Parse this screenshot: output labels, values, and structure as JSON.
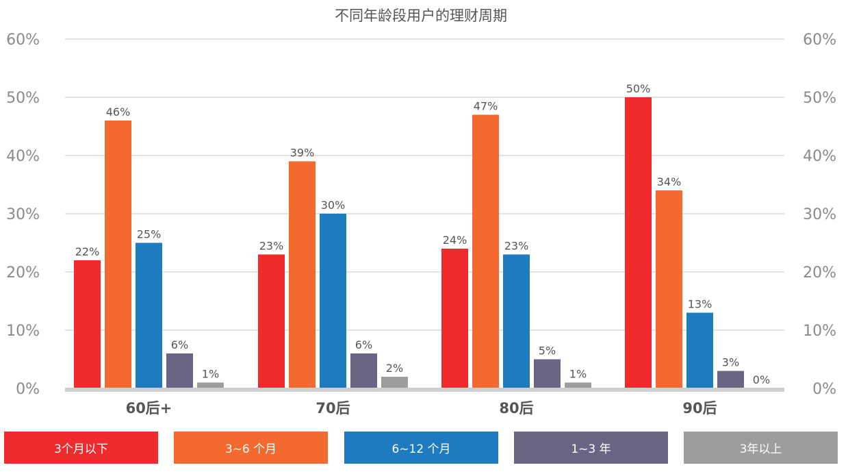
{
  "chart_data": {
    "type": "bar",
    "title": "不同年龄段用户的理财周期",
    "categories": [
      "60后+",
      "70后",
      "80后",
      "90后"
    ],
    "series": [
      {
        "name": "3个月以下",
        "color": "#ef2b2d",
        "values": [
          22,
          23,
          24,
          50
        ]
      },
      {
        "name": "3~6 个月",
        "color": "#f26a30",
        "values": [
          46,
          39,
          47,
          34
        ]
      },
      {
        "name": "6~12 个月",
        "color": "#1f7bbf",
        "values": [
          25,
          30,
          23,
          13
        ]
      },
      {
        "name": "1~3 年",
        "color": "#6b6585",
        "values": [
          6,
          6,
          5,
          3
        ]
      },
      {
        "name": "3年以上",
        "color": "#9d9d9f",
        "values": [
          1,
          2,
          1,
          0
        ]
      }
    ],
    "data_labels": [
      [
        "22%",
        "46%",
        "25%",
        "6%",
        "1%"
      ],
      [
        "23%",
        "39%",
        "30%",
        "6%",
        "2%"
      ],
      [
        "24%",
        "47%",
        "23%",
        "5%",
        "1%"
      ],
      [
        "50%",
        "34%",
        "13%",
        "3%",
        "0%"
      ]
    ],
    "ylim": [
      0,
      60
    ],
    "y_ticks": [
      "0%",
      "10%",
      "20%",
      "30%",
      "40%",
      "50%",
      "60%"
    ],
    "y_tick_values": [
      0,
      10,
      20,
      30,
      40,
      50,
      60
    ],
    "xlabel": "",
    "ylabel": "",
    "grid": true,
    "legend_position": "bottom"
  }
}
